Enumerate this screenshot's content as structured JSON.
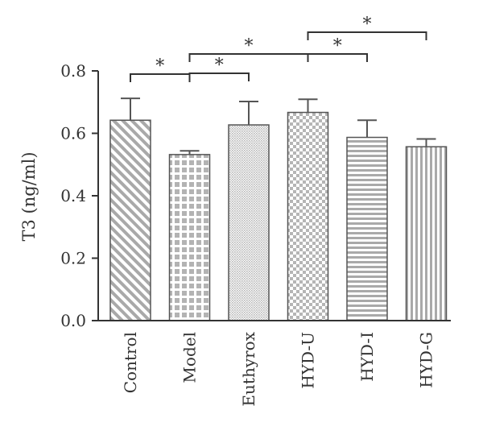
{
  "chart_data": {
    "type": "bar",
    "ylabel": "T3 (ng/ml)",
    "ylim": [
      0,
      0.8
    ],
    "yticks": [
      "0.0",
      "0.2",
      "0.4",
      "0.6",
      "0.8"
    ],
    "categories": [
      "Control",
      "Model",
      "Euthyrox",
      "HYD-U",
      "HYD-I",
      "HYD-G"
    ],
    "values": [
      0.642,
      0.532,
      0.627,
      0.667,
      0.587,
      0.557
    ],
    "error": [
      0.07,
      0.012,
      0.075,
      0.042,
      0.055,
      0.025
    ],
    "patterns": [
      "diagonal-stripes",
      "grid-squares",
      "fine-dots",
      "checkerboard",
      "horizontal-stripes",
      "vertical-stripes"
    ],
    "bar_color": "#b0b0b0",
    "significance": [
      {
        "from": "Control",
        "to": "Model",
        "label": "*"
      },
      {
        "from": "Model",
        "to": "Euthyrox",
        "label": "*"
      },
      {
        "from": "Model",
        "to": "HYD-U",
        "label": "*"
      },
      {
        "from": "HYD-U",
        "to": "HYD-I",
        "label": "*"
      },
      {
        "from": "HYD-U",
        "to": "HYD-G",
        "label": "*"
      }
    ]
  }
}
